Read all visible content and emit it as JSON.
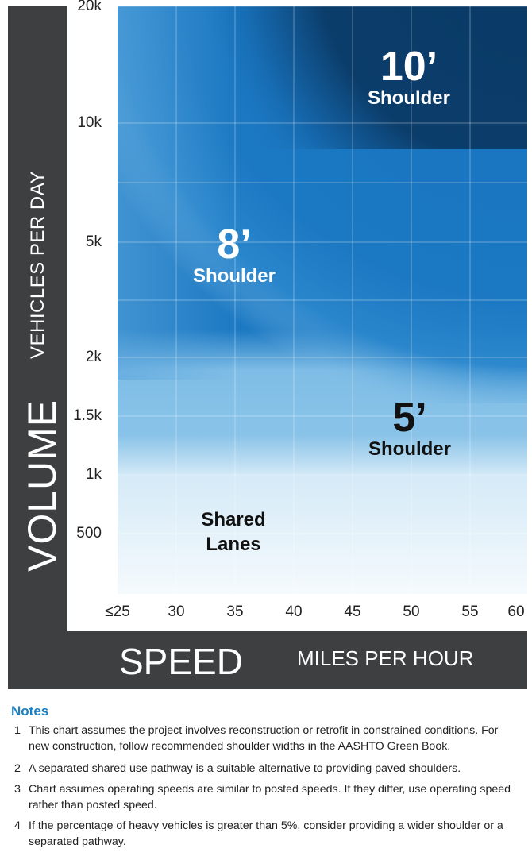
{
  "chart_data": {
    "type": "heatmap",
    "title": "",
    "xlabel": "SPEED",
    "xlabel_units": "MILES PER HOUR",
    "ylabel": "VOLUME",
    "ylabel_units": "VEHICLES PER DAY",
    "x_ticks": [
      "≤25",
      "30",
      "35",
      "40",
      "45",
      "50",
      "55",
      "60"
    ],
    "y_ticks": [
      "500",
      "1k",
      "1.5k",
      "2k",
      "5k",
      "10k",
      "20k"
    ],
    "zones": [
      {
        "value": "10’",
        "label": "Shoulder",
        "min_volume": "10k",
        "color": "#0a3a66"
      },
      {
        "value": "8’",
        "label": "Shoulder",
        "min_volume": "2k",
        "color": "#1b78c2"
      },
      {
        "value": "5’",
        "label": "Shoulder",
        "min_volume": "1k",
        "color": "#7fbde6"
      },
      {
        "value": "Shared",
        "label": "Lanes",
        "min_volume": "",
        "color": "#e4f2fb"
      }
    ]
  },
  "notes": {
    "title": "Notes",
    "items": [
      {
        "num": "1",
        "text": "This chart assumes the project involves reconstruction or retrofit in constrained conditions. For new construction, follow recommended shoulder widths in the AASHTO Green Book."
      },
      {
        "num": "2",
        "text": "A separated shared use pathway is a suitable alternative to providing paved shoulders."
      },
      {
        "num": "3",
        "text": "Chart assumes operating speeds are similar to posted speeds. If they differ, use operating speed rather than posted speed."
      },
      {
        "num": "4",
        "text": "If the percentage of heavy vehicles is greater than 5%, consider providing a wider shoulder or a separated pathway."
      }
    ]
  }
}
